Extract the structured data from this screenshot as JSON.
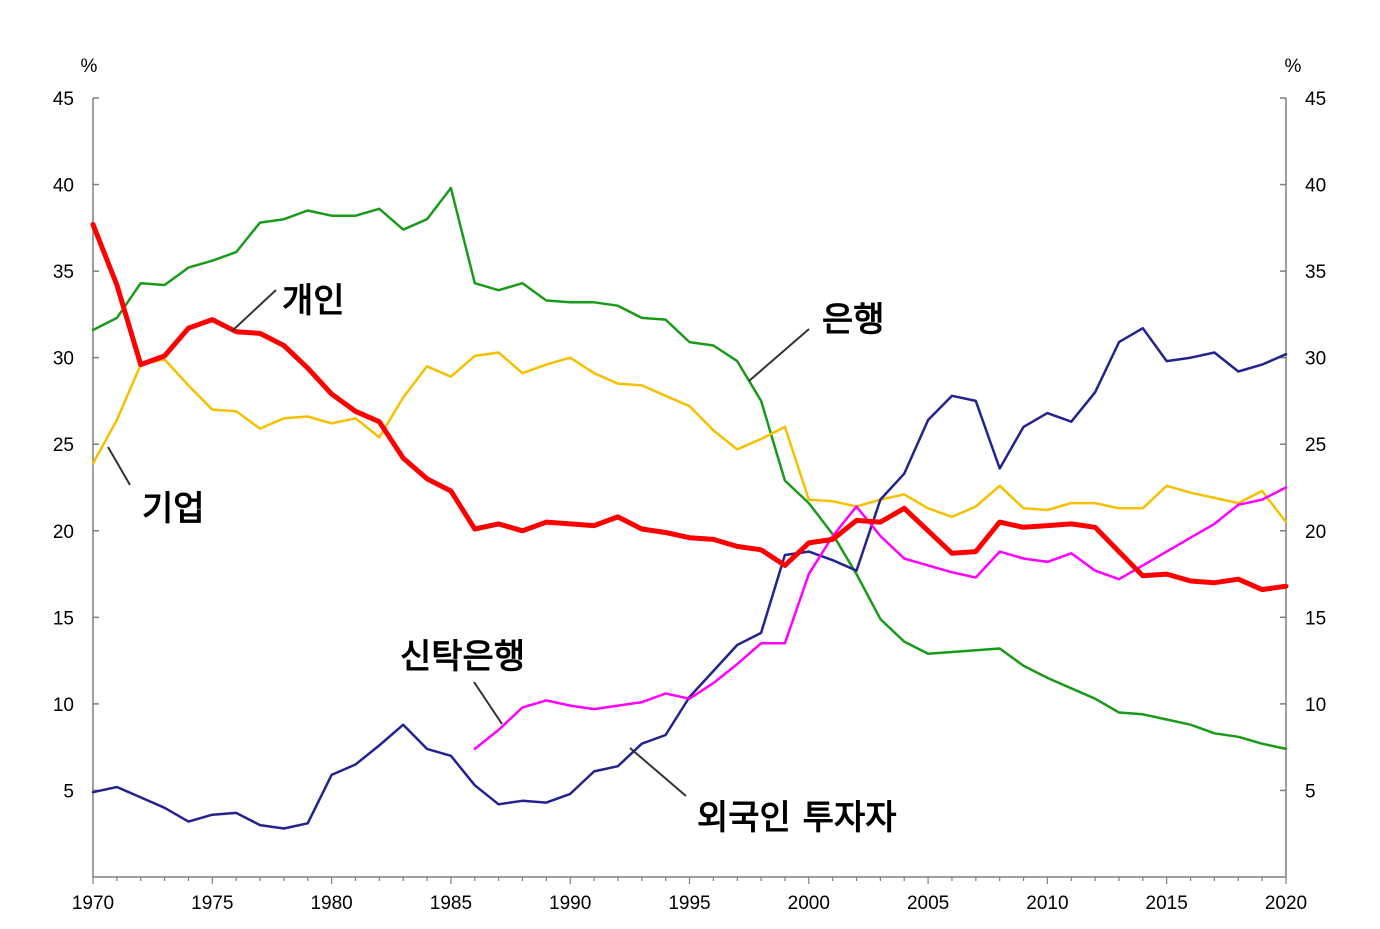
{
  "chart_data": {
    "type": "line",
    "title": "",
    "xlabel": "",
    "ylabel": "",
    "left_unit": "%",
    "right_unit": "%",
    "xlim": [
      1970,
      2020
    ],
    "ylim": [
      0,
      45
    ],
    "x_ticks": [
      "1970",
      "1975",
      "1980",
      "1985",
      "1990",
      "1995",
      "2000",
      "2005",
      "2010",
      "2015",
      "2020"
    ],
    "y_ticks": [
      "5",
      "10",
      "15",
      "20",
      "25",
      "30",
      "35",
      "40",
      "45"
    ],
    "grid": false,
    "series": [
      {
        "name": "은행",
        "color": "#1a9a1a",
        "x": [
          1970,
          1971,
          1972,
          1973,
          1974,
          1975,
          1976,
          1977,
          1978,
          1979,
          1980,
          1981,
          1982,
          1983,
          1984,
          1985,
          1986,
          1987,
          1988,
          1989,
          1990,
          1991,
          1992,
          1993,
          1994,
          1995,
          1996,
          1997,
          1998,
          1999,
          2000,
          2001,
          2002,
          2003,
          2004,
          2005,
          2006,
          2007,
          2008,
          2009,
          2010,
          2011,
          2012,
          2013,
          2014,
          2015,
          2016,
          2017,
          2018,
          2019,
          2020
        ],
        "values": [
          31.6,
          32.3,
          34.3,
          34.2,
          35.2,
          35.6,
          36.1,
          37.8,
          38.0,
          38.5,
          38.2,
          38.2,
          38.6,
          37.4,
          38.0,
          39.8,
          34.3,
          33.9,
          34.3,
          33.3,
          33.2,
          33.2,
          33.0,
          32.3,
          32.2,
          30.9,
          30.7,
          29.8,
          27.5,
          22.9,
          21.6,
          19.8,
          17.5,
          14.9,
          13.6,
          12.9,
          13.0,
          13.1,
          13.2,
          12.2,
          11.5,
          10.9,
          10.3,
          9.5,
          9.4,
          9.1,
          8.8,
          8.3,
          8.1,
          7.7,
          7.4
        ]
      },
      {
        "name": "기업",
        "color": "#f5c000",
        "x": [
          1970,
          1971,
          1972,
          1973,
          1974,
          1975,
          1976,
          1977,
          1978,
          1979,
          1980,
          1981,
          1982,
          1983,
          1984,
          1985,
          1986,
          1987,
          1988,
          1989,
          1990,
          1991,
          1992,
          1993,
          1994,
          1995,
          1996,
          1997,
          1998,
          1999,
          2000,
          2001,
          2002,
          2003,
          2004,
          2005,
          2006,
          2007,
          2008,
          2009,
          2010,
          2011,
          2012,
          2013,
          2014,
          2015,
          2016,
          2017,
          2018,
          2019,
          2020
        ],
        "values": [
          23.9,
          26.4,
          29.6,
          29.9,
          28.4,
          27.0,
          26.9,
          25.9,
          26.5,
          26.6,
          26.2,
          26.5,
          25.4,
          27.7,
          29.5,
          28.9,
          30.1,
          30.3,
          29.1,
          29.6,
          30.0,
          29.1,
          28.5,
          28.4,
          27.8,
          27.2,
          25.8,
          24.7,
          25.3,
          26.0,
          21.8,
          21.7,
          21.4,
          21.8,
          22.1,
          21.3,
          20.8,
          21.4,
          22.6,
          21.3,
          21.2,
          21.6,
          21.6,
          21.3,
          21.3,
          22.6,
          22.2,
          21.9,
          21.6,
          22.3,
          20.5
        ]
      },
      {
        "name": "개인",
        "color": "#ff0000",
        "x": [
          1970,
          1971,
          1972,
          1973,
          1974,
          1975,
          1976,
          1977,
          1978,
          1979,
          1980,
          1981,
          1982,
          1983,
          1984,
          1985,
          1986,
          1987,
          1988,
          1989,
          1990,
          1991,
          1992,
          1993,
          1994,
          1995,
          1996,
          1997,
          1998,
          1999,
          2000,
          2001,
          2002,
          2003,
          2004,
          2005,
          2006,
          2007,
          2008,
          2009,
          2010,
          2011,
          2012,
          2013,
          2014,
          2015,
          2016,
          2017,
          2018,
          2019,
          2020
        ],
        "values": [
          37.7,
          34.2,
          29.6,
          30.1,
          31.7,
          32.2,
          31.5,
          31.4,
          30.7,
          29.4,
          27.9,
          26.9,
          26.3,
          24.2,
          23.0,
          22.3,
          20.1,
          20.4,
          20.0,
          20.5,
          20.4,
          20.3,
          20.8,
          20.1,
          19.9,
          19.6,
          19.5,
          19.1,
          18.9,
          18.0,
          19.3,
          19.5,
          20.6,
          20.5,
          21.3,
          20.0,
          18.7,
          18.8,
          20.5,
          20.2,
          20.3,
          20.4,
          20.2,
          18.8,
          17.4,
          17.5,
          17.1,
          17.0,
          17.2,
          16.6,
          16.8
        ]
      },
      {
        "name": "외국인 투자자",
        "color": "#23238f",
        "x": [
          1970,
          1971,
          1972,
          1973,
          1974,
          1975,
          1976,
          1977,
          1978,
          1979,
          1980,
          1981,
          1982,
          1983,
          1984,
          1985,
          1986,
          1987,
          1988,
          1989,
          1990,
          1991,
          1992,
          1993,
          1994,
          1995,
          1996,
          1997,
          1998,
          1999,
          2000,
          2001,
          2002,
          2003,
          2004,
          2005,
          2006,
          2007,
          2008,
          2009,
          2010,
          2011,
          2012,
          2013,
          2014,
          2015,
          2016,
          2017,
          2018,
          2019,
          2020
        ],
        "values": [
          4.9,
          5.2,
          4.6,
          4.0,
          3.2,
          3.6,
          3.7,
          3.0,
          2.8,
          3.1,
          5.9,
          6.5,
          7.6,
          8.8,
          7.4,
          7.0,
          5.3,
          4.2,
          4.4,
          4.3,
          4.8,
          6.1,
          6.4,
          7.7,
          8.2,
          10.4,
          11.9,
          13.4,
          14.1,
          18.6,
          18.8,
          18.3,
          17.7,
          21.8,
          23.3,
          26.4,
          27.8,
          27.5,
          23.6,
          26.0,
          26.8,
          26.3,
          28.0,
          30.9,
          31.7,
          29.8,
          30.0,
          30.3,
          29.2,
          29.6,
          30.2
        ]
      },
      {
        "name": "신탁은행",
        "color": "#ff00ff",
        "x": [
          1986,
          1987,
          1988,
          1989,
          1990,
          1991,
          1992,
          1993,
          1994,
          1995,
          1996,
          1997,
          1998,
          1999,
          2000,
          2001,
          2002,
          2003,
          2004,
          2005,
          2006,
          2007,
          2008,
          2009,
          2010,
          2011,
          2012,
          2013,
          2014,
          2015,
          2016,
          2017,
          2018,
          2019,
          2020
        ],
        "values": [
          7.4,
          8.5,
          9.8,
          10.2,
          9.9,
          9.7,
          9.9,
          10.1,
          10.6,
          10.3,
          11.2,
          12.3,
          13.5,
          13.5,
          17.5,
          19.7,
          21.4,
          19.7,
          18.4,
          18.0,
          17.6,
          17.3,
          18.8,
          18.4,
          18.2,
          18.7,
          17.7,
          17.2,
          18.0,
          18.8,
          19.6,
          20.4,
          21.5,
          21.8,
          22.5
        ]
      }
    ],
    "annotations": [
      "개인",
      "은행",
      "기업",
      "신탁은행",
      "외국인 투자자"
    ]
  }
}
